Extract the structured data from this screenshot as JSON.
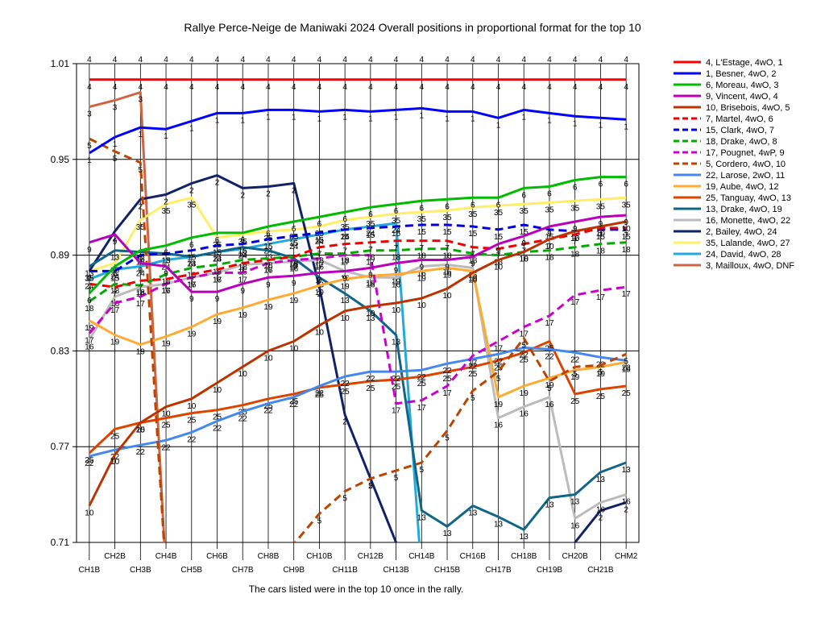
{
  "chart_data": {
    "type": "line",
    "title": "Rallye Perce-Neige de Maniwaki 2024  Overall positions in proportional format for the top 10",
    "footnote": "The cars listed were in the top 10 once in the rally.",
    "xlabel": "",
    "ylabel": "",
    "categories": [
      "CH1B",
      "CH2B",
      "CH3B",
      "CH4B",
      "CH5B",
      "CH6B",
      "CH7B",
      "CH8B",
      "CH9B",
      "CH10B",
      "CH11B",
      "CH12B",
      "CH13B",
      "CH14B",
      "CH15B",
      "CH16B",
      "CH17B",
      "CH18B",
      "CH19B",
      "CH20B",
      "CH21B",
      "CHM2"
    ],
    "ylim": [
      0.71,
      1.01
    ],
    "yticks": [
      "0.71",
      "0.77",
      "0.83",
      "0.89",
      "0.95",
      "1.01"
    ],
    "grid": true,
    "legend_position": "right",
    "top_labels": [
      "4",
      "4",
      "4",
      "4",
      "4",
      "4",
      "4",
      "4",
      "4",
      "4",
      "4",
      "4",
      "4",
      "4",
      "4",
      "4",
      "4",
      "4",
      "4",
      "4",
      "4",
      "4"
    ],
    "series": [
      {
        "name": "4, L'Estage, 4wO, 1",
        "label": "4",
        "color": "#ff0000",
        "dash": false,
        "values": [
          1.0,
          1.0,
          1.0,
          1.0,
          1.0,
          1.0,
          1.0,
          1.0,
          1.0,
          1.0,
          1.0,
          1.0,
          1.0,
          1.0,
          1.0,
          1.0,
          1.0,
          1.0,
          1.0,
          1.0,
          1.0,
          1.0
        ]
      },
      {
        "name": "1, Besner, 4wO, 2",
        "label": "1",
        "color": "#0000ff",
        "dash": false,
        "values": [
          0.954,
          0.964,
          0.97,
          0.969,
          0.974,
          0.979,
          0.979,
          0.981,
          0.981,
          0.98,
          0.981,
          0.98,
          0.981,
          0.982,
          0.98,
          0.98,
          0.976,
          0.981,
          0.979,
          0.977,
          0.976,
          0.975
        ]
      },
      {
        "name": "6, Moreau, 4wO, 3",
        "label": "6",
        "color": "#00bb00",
        "dash": false,
        "values": [
          0.866,
          0.883,
          0.893,
          0.896,
          0.901,
          0.904,
          0.904,
          0.908,
          0.911,
          0.914,
          0.917,
          0.92,
          0.922,
          0.924,
          0.925,
          0.926,
          0.926,
          0.932,
          0.933,
          0.937,
          0.939,
          0.939
        ]
      },
      {
        "name": "9, Vincent, 4wO, 4",
        "label": "9",
        "color": "#bb00bb",
        "dash": false,
        "values": [
          0.898,
          0.903,
          0.885,
          0.883,
          0.867,
          0.867,
          0.872,
          0.876,
          0.877,
          0.879,
          0.88,
          0.882,
          0.885,
          0.887,
          0.887,
          0.889,
          0.897,
          0.902,
          0.908,
          0.911,
          0.914,
          0.915
        ]
      },
      {
        "name": "10, Brisebois, 4wO, 5",
        "label": "10",
        "color": "#bb3300",
        "dash": false,
        "values": [
          0.733,
          0.765,
          0.785,
          0.795,
          0.8,
          0.81,
          0.82,
          0.83,
          0.836,
          0.846,
          0.855,
          0.858,
          0.86,
          0.863,
          0.869,
          0.879,
          0.887,
          0.892,
          0.9,
          0.905,
          0.908,
          0.911
        ]
      },
      {
        "name": "7, Martel, 4wO, 6",
        "label": "7",
        "color": "#ee0000",
        "dash": true,
        "values": [
          0.872,
          0.87,
          0.874,
          0.875,
          0.878,
          0.881,
          0.885,
          0.887,
          0.889,
          0.895,
          0.897,
          0.898,
          0.899,
          0.899,
          0.899,
          0.895,
          0.894,
          0.897,
          0.9,
          0.903,
          0.907,
          0.907
        ]
      },
      {
        "name": "15, Clark, 4wO, 7",
        "label": "15",
        "color": "#0000dd",
        "dash": true,
        "values": [
          0.88,
          0.88,
          0.89,
          0.891,
          0.893,
          0.896,
          0.897,
          0.9,
          0.902,
          0.904,
          0.906,
          0.907,
          0.908,
          0.909,
          0.909,
          0.908,
          0.906,
          0.909,
          0.906,
          0.905,
          0.906,
          0.906
        ]
      },
      {
        "name": "18, Drake, 4wO, 8",
        "label": "18",
        "color": "#00aa00",
        "dash": true,
        "values": [
          0.861,
          0.872,
          0.871,
          0.878,
          0.882,
          0.884,
          0.887,
          0.888,
          0.889,
          0.891,
          0.891,
          0.893,
          0.893,
          0.894,
          0.894,
          0.891,
          0.89,
          0.892,
          0.893,
          0.895,
          0.897,
          0.898
        ]
      },
      {
        "name": "17, Pougnet, 4wP, 9",
        "label": "17",
        "color": "#cc00cc",
        "dash": true,
        "values": [
          0.841,
          0.86,
          0.864,
          0.872,
          0.876,
          0.879,
          0.879,
          0.885,
          0.887,
          0.888,
          0.89,
          0.89,
          0.797,
          0.799,
          0.808,
          0.827,
          0.836,
          0.845,
          0.852,
          0.865,
          0.868,
          0.87
        ]
      },
      {
        "name": "5, Cordero, 4wO, 10",
        "label": "5",
        "color": "#bb4400",
        "dash": true,
        "values": [
          0.963,
          0.955,
          0.948,
          0.69,
          0.69,
          0.69,
          0.69,
          0.69,
          0.709,
          0.728,
          0.742,
          0.75,
          0.755,
          0.76,
          0.78,
          0.805,
          0.817,
          0.838,
          0.811,
          0.82,
          0.821,
          0.828
        ]
      },
      {
        "name": "22, Larose, 2wO, 11",
        "label": "22",
        "color": "#4488ee",
        "dash": false,
        "values": [
          0.764,
          0.768,
          0.771,
          0.774,
          0.779,
          0.786,
          0.792,
          0.797,
          0.801,
          0.808,
          0.814,
          0.817,
          0.817,
          0.818,
          0.822,
          0.825,
          0.828,
          0.832,
          0.831,
          0.829,
          0.826,
          0.824
        ]
      },
      {
        "name": "19, Aube, 4wO, 12",
        "label": "19",
        "color": "#ffaa33",
        "dash": false,
        "values": [
          0.849,
          0.84,
          0.834,
          0.839,
          0.845,
          0.853,
          0.857,
          0.862,
          0.866,
          0.871,
          0.875,
          0.877,
          0.878,
          0.88,
          0.882,
          0.88,
          0.801,
          0.808,
          0.813,
          0.818,
          0.82,
          0.823
        ]
      },
      {
        "name": "25, Tanguay, 4wO, 13",
        "label": "25",
        "color": "#dd4400",
        "dash": false,
        "values": [
          0.766,
          0.781,
          0.785,
          0.788,
          0.791,
          0.793,
          0.796,
          0.8,
          0.803,
          0.807,
          0.809,
          0.811,
          0.812,
          0.814,
          0.817,
          0.82,
          0.824,
          0.829,
          0.836,
          0.803,
          0.806,
          0.808
        ]
      },
      {
        "name": "13, Drake, 4wO, 19",
        "label": "13",
        "color": "#116688",
        "dash": false,
        "values": [
          0.883,
          0.893,
          0.892,
          0.891,
          0.889,
          0.892,
          0.895,
          0.893,
          0.888,
          0.876,
          0.866,
          0.855,
          0.84,
          0.73,
          0.72,
          0.733,
          0.726,
          0.718,
          0.738,
          0.74,
          0.754,
          0.76
        ]
      },
      {
        "name": "16, Monette, 4wO, 22",
        "label": "16",
        "color": "#bbbbbb",
        "dash": false,
        "values": [
          0.837,
          0.864,
          0.87,
          0.872,
          0.876,
          0.879,
          0.884,
          0.885,
          0.886,
          0.887,
          0.88,
          0.876,
          0.876,
          0.883,
          0.884,
          0.882,
          0.788,
          0.795,
          0.801,
          0.725,
          0.735,
          0.74
        ]
      },
      {
        "name": "2, Bailey, 4wO, 24",
        "label": "2",
        "color": "#112266",
        "dash": false,
        "values": [
          0.88,
          0.905,
          0.925,
          0.928,
          0.935,
          0.94,
          0.932,
          0.933,
          0.935,
          0.87,
          0.79,
          0.75,
          0.71,
          0.69,
          0.69,
          0.69,
          0.69,
          0.69,
          0.69,
          0.71,
          0.73,
          0.735
        ]
      },
      {
        "name": "35, Lalande, 4wO, 27",
        "label": "35",
        "color": "#ffee66",
        "dash": false,
        "values": [
          0.88,
          0.885,
          0.912,
          0.922,
          0.926,
          0.901,
          0.903,
          0.905,
          0.906,
          0.908,
          0.912,
          0.914,
          0.916,
          0.917,
          0.918,
          0.92,
          0.921,
          0.922,
          0.923,
          0.924,
          0.925,
          0.926
        ]
      },
      {
        "name": "24, David, 4wO, 28",
        "label": "24",
        "color": "#22aadd",
        "dash": false,
        "values": [
          0.875,
          0.881,
          0.883,
          0.887,
          0.889,
          0.892,
          0.894,
          0.897,
          0.9,
          0.903,
          0.906,
          0.908,
          0.91,
          0.69,
          0.69,
          0.69,
          0.69,
          0.69,
          0.69,
          0.69,
          0.69,
          0.69
        ]
      },
      {
        "name": "3, Mailloux, 4wO, DNF",
        "label": "3",
        "color": "#cc6644",
        "dash": false,
        "values": [
          0.983,
          0.987,
          0.992,
          0.69,
          0.69,
          0.69,
          0.69,
          0.69,
          0.69,
          0.69,
          0.69,
          0.69,
          0.69,
          0.69,
          0.69,
          0.69,
          0.69,
          0.69,
          0.69,
          0.69,
          0.69,
          0.69
        ]
      }
    ]
  }
}
